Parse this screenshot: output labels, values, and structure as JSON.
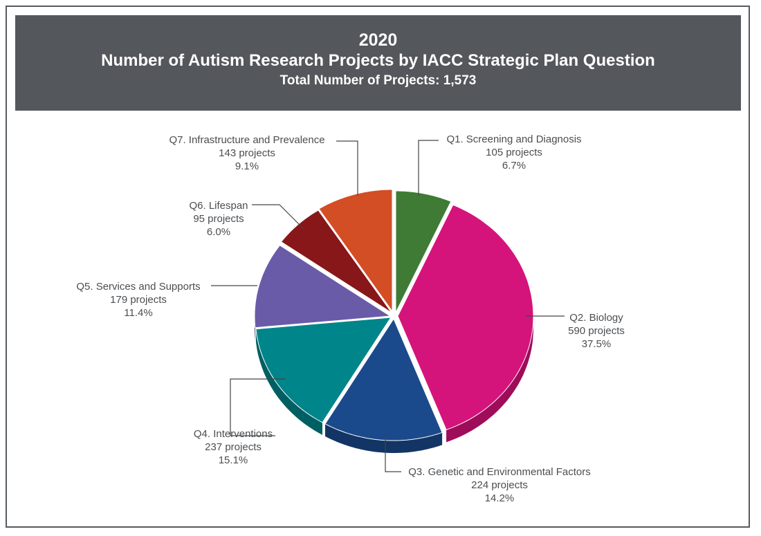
{
  "header": {
    "year": "2020",
    "title": "Number of Autism Research Projects by IACC Strategic Plan Question",
    "total_label": "Total Number of Projects:",
    "total_value": "1,573"
  },
  "chart_data": {
    "type": "pie",
    "title": "Number of Autism Research Projects by IACC Strategic Plan Question",
    "subtitle": "Total Number of Projects: 1,573",
    "total": 1573,
    "slices": [
      {
        "name": "Q1. Screening and Diagnosis",
        "value": 105,
        "value_label": "105 projects",
        "percent": 6.7,
        "percent_label": "6.7%",
        "color": "#3f7b35",
        "side": "#2b5a23"
      },
      {
        "name": "Q2. Biology",
        "value": 590,
        "value_label": "590 projects",
        "percent": 37.5,
        "percent_label": "37.5%",
        "color": "#d4147b",
        "side": "#9e0c5a"
      },
      {
        "name": "Q3. Genetic and Environmental Factors",
        "value": 224,
        "value_label": "224 projects",
        "percent": 14.2,
        "percent_label": "14.2%",
        "color": "#1b4a8c",
        "side": "#123565"
      },
      {
        "name": "Q4. Interventions",
        "value": 237,
        "value_label": "237 projects",
        "percent": 15.1,
        "percent_label": "15.1%",
        "color": "#00858a",
        "side": "#005f63"
      },
      {
        "name": "Q5. Services and Supports",
        "value": 179,
        "value_label": "179 projects",
        "percent": 11.4,
        "percent_label": "11.4%",
        "color": "#6a5ba8",
        "side": "#4a3f7c"
      },
      {
        "name": "Q6. Lifespan",
        "value": 95,
        "value_label": "95 projects",
        "percent": 6.0,
        "percent_label": "6.0%",
        "color": "#871719",
        "side": "#5f0f10"
      },
      {
        "name": "Q7. Infrastructure and Prevalence",
        "value": 143,
        "value_label": "143 projects",
        "percent": 9.1,
        "percent_label": "9.1%",
        "color": "#d34d25",
        "side": "#9c3819"
      }
    ]
  }
}
